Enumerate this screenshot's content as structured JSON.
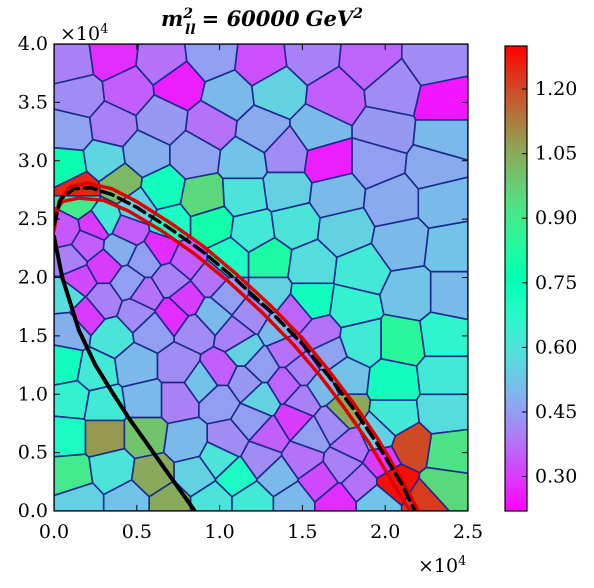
{
  "chart_data": {
    "type": "heatmap",
    "title": "m_ll^2 = 60000 GeV^2",
    "title_parts": {
      "m": "m",
      "sup": "2",
      "sub": "ll",
      "eq": "= 60000",
      "unit": "GeV",
      "unit_sup": "2"
    },
    "x_range": [
      0,
      25000
    ],
    "y_range": [
      0,
      40000
    ],
    "x_ticks": [
      0,
      5000,
      10000,
      15000,
      20000,
      25000
    ],
    "x_tick_labels": [
      "0.0",
      "0.5",
      "1.0",
      "1.5",
      "2.0",
      "2.5"
    ],
    "y_ticks": [
      0,
      5000,
      10000,
      15000,
      20000,
      25000,
      30000,
      35000,
      40000
    ],
    "y_tick_labels": [
      "0.0",
      "0.5",
      "1.0",
      "1.5",
      "2.0",
      "2.5",
      "3.0",
      "3.5",
      "4.0"
    ],
    "x_multiplier": {
      "base": "×10",
      "exp": "4"
    },
    "y_multiplier": {
      "base": "×10",
      "exp": "4"
    },
    "colorbar": {
      "range": [
        0.22,
        1.3
      ],
      "ticks": [
        0.3,
        0.45,
        0.6,
        0.75,
        0.9,
        1.05,
        1.2
      ],
      "tick_labels": [
        "0.30",
        "0.45",
        "0.60",
        "0.75",
        "0.90",
        "1.05",
        "1.20"
      ],
      "colormap": "rainbow"
    },
    "cells": [
      {
        "x": 1000,
        "y": 38500,
        "v": 0.4
      },
      {
        "x": 3500,
        "y": 39000,
        "v": 0.28
      },
      {
        "x": 6500,
        "y": 38500,
        "v": 0.38
      },
      {
        "x": 9500,
        "y": 39000,
        "v": 0.45
      },
      {
        "x": 12500,
        "y": 38500,
        "v": 0.33
      },
      {
        "x": 15500,
        "y": 39000,
        "v": 0.4
      },
      {
        "x": 19000,
        "y": 38500,
        "v": 0.36
      },
      {
        "x": 23000,
        "y": 38500,
        "v": 0.42
      },
      {
        "x": 1500,
        "y": 35500,
        "v": 0.42
      },
      {
        "x": 4500,
        "y": 36000,
        "v": 0.35
      },
      {
        "x": 7500,
        "y": 36500,
        "v": 0.26
      },
      {
        "x": 10500,
        "y": 35500,
        "v": 0.5
      },
      {
        "x": 13500,
        "y": 36000,
        "v": 0.55
      },
      {
        "x": 17000,
        "y": 35500,
        "v": 0.35
      },
      {
        "x": 20500,
        "y": 36000,
        "v": 0.42
      },
      {
        "x": 23500,
        "y": 35000,
        "v": 0.25
      },
      {
        "x": 1000,
        "y": 32500,
        "v": 0.46
      },
      {
        "x": 3500,
        "y": 33000,
        "v": 0.4
      },
      {
        "x": 6500,
        "y": 33500,
        "v": 0.44
      },
      {
        "x": 9500,
        "y": 33000,
        "v": 0.38
      },
      {
        "x": 12500,
        "y": 32500,
        "v": 0.47
      },
      {
        "x": 16000,
        "y": 32500,
        "v": 0.5
      },
      {
        "x": 20000,
        "y": 32500,
        "v": 0.44
      },
      {
        "x": 23500,
        "y": 32000,
        "v": 0.5
      },
      {
        "x": 800,
        "y": 29500,
        "v": 0.78
      },
      {
        "x": 3000,
        "y": 30000,
        "v": 0.56
      },
      {
        "x": 5500,
        "y": 30500,
        "v": 0.48
      },
      {
        "x": 8500,
        "y": 30500,
        "v": 0.46
      },
      {
        "x": 11500,
        "y": 30000,
        "v": 0.52
      },
      {
        "x": 14000,
        "y": 30500,
        "v": 0.42
      },
      {
        "x": 16500,
        "y": 30000,
        "v": 0.26
      },
      {
        "x": 19500,
        "y": 30000,
        "v": 0.45
      },
      {
        "x": 23000,
        "y": 29500,
        "v": 0.47
      },
      {
        "x": 1500,
        "y": 27500,
        "v": 1.25
      },
      {
        "x": 4000,
        "y": 28000,
        "v": 1.02
      },
      {
        "x": 6500,
        "y": 27500,
        "v": 0.72
      },
      {
        "x": 9000,
        "y": 26800,
        "v": 0.95
      },
      {
        "x": 11500,
        "y": 27000,
        "v": 0.6
      },
      {
        "x": 14000,
        "y": 27500,
        "v": 0.55
      },
      {
        "x": 17000,
        "y": 27000,
        "v": 0.5
      },
      {
        "x": 20500,
        "y": 26500,
        "v": 0.47
      },
      {
        "x": 23500,
        "y": 26500,
        "v": 0.5
      },
      {
        "x": 600,
        "y": 24000,
        "v": 0.34
      },
      {
        "x": 2500,
        "y": 24500,
        "v": 0.3
      },
      {
        "x": 4500,
        "y": 24000,
        "v": 0.35
      },
      {
        "x": 7000,
        "y": 24500,
        "v": 0.7
      },
      {
        "x": 9500,
        "y": 24500,
        "v": 0.8
      },
      {
        "x": 12000,
        "y": 24000,
        "v": 0.62
      },
      {
        "x": 14500,
        "y": 24500,
        "v": 0.6
      },
      {
        "x": 17500,
        "y": 24000,
        "v": 0.55
      },
      {
        "x": 21000,
        "y": 23000,
        "v": 0.5
      },
      {
        "x": 24000,
        "y": 22500,
        "v": 0.52
      },
      {
        "x": 1000,
        "y": 21500,
        "v": 0.4
      },
      {
        "x": 3000,
        "y": 21000,
        "v": 0.3
      },
      {
        "x": 5500,
        "y": 21500,
        "v": 0.45
      },
      {
        "x": 8000,
        "y": 21500,
        "v": 0.35
      },
      {
        "x": 10500,
        "y": 21500,
        "v": 0.7
      },
      {
        "x": 13000,
        "y": 21500,
        "v": 0.82
      },
      {
        "x": 15500,
        "y": 21000,
        "v": 0.58
      },
      {
        "x": 18500,
        "y": 20500,
        "v": 0.62
      },
      {
        "x": 800,
        "y": 18500,
        "v": 0.58
      },
      {
        "x": 3000,
        "y": 18000,
        "v": 0.4
      },
      {
        "x": 5500,
        "y": 18500,
        "v": 0.38
      },
      {
        "x": 8000,
        "y": 18000,
        "v": 0.3
      },
      {
        "x": 10500,
        "y": 18500,
        "v": 0.45
      },
      {
        "x": 13000,
        "y": 18500,
        "v": 0.55
      },
      {
        "x": 15500,
        "y": 18000,
        "v": 0.72
      },
      {
        "x": 18000,
        "y": 17500,
        "v": 0.65
      },
      {
        "x": 21500,
        "y": 18500,
        "v": 0.52
      },
      {
        "x": 24000,
        "y": 18500,
        "v": 0.5
      },
      {
        "x": 1000,
        "y": 15500,
        "v": 0.48
      },
      {
        "x": 3500,
        "y": 15000,
        "v": 0.6
      },
      {
        "x": 6000,
        "y": 15500,
        "v": 0.45
      },
      {
        "x": 8500,
        "y": 15500,
        "v": 0.42
      },
      {
        "x": 11000,
        "y": 15000,
        "v": 0.4
      },
      {
        "x": 13500,
        "y": 15500,
        "v": 0.5
      },
      {
        "x": 16000,
        "y": 15000,
        "v": 0.38
      },
      {
        "x": 18500,
        "y": 14500,
        "v": 0.62
      },
      {
        "x": 21000,
        "y": 14500,
        "v": 0.85
      },
      {
        "x": 23500,
        "y": 15000,
        "v": 0.66
      },
      {
        "x": 600,
        "y": 12500,
        "v": 0.72
      },
      {
        "x": 2500,
        "y": 12000,
        "v": 0.62
      },
      {
        "x": 5000,
        "y": 12500,
        "v": 0.5
      },
      {
        "x": 7500,
        "y": 12500,
        "v": 0.42
      },
      {
        "x": 10000,
        "y": 12000,
        "v": 0.35
      },
      {
        "x": 12500,
        "y": 12500,
        "v": 0.45
      },
      {
        "x": 15000,
        "y": 12000,
        "v": 0.4
      },
      {
        "x": 17500,
        "y": 11500,
        "v": 0.52
      },
      {
        "x": 20500,
        "y": 11000,
        "v": 0.72
      },
      {
        "x": 23500,
        "y": 11500,
        "v": 0.62
      },
      {
        "x": 1000,
        "y": 9500,
        "v": 0.65
      },
      {
        "x": 3000,
        "y": 9000,
        "v": 0.62
      },
      {
        "x": 5500,
        "y": 9500,
        "v": 0.5
      },
      {
        "x": 7500,
        "y": 9500,
        "v": 0.4
      },
      {
        "x": 10000,
        "y": 9500,
        "v": 0.45
      },
      {
        "x": 12500,
        "y": 9500,
        "v": 0.55
      },
      {
        "x": 15000,
        "y": 9500,
        "v": 0.4
      },
      {
        "x": 17500,
        "y": 8500,
        "v": 1.05
      },
      {
        "x": 20500,
        "y": 8000,
        "v": 0.62
      },
      {
        "x": 23500,
        "y": 8500,
        "v": 0.58
      },
      {
        "x": 800,
        "y": 6500,
        "v": 0.7
      },
      {
        "x": 3000,
        "y": 6500,
        "v": 1.08
      },
      {
        "x": 5500,
        "y": 6500,
        "v": 1.0
      },
      {
        "x": 8000,
        "y": 6000,
        "v": 0.5
      },
      {
        "x": 10500,
        "y": 6000,
        "v": 0.42
      },
      {
        "x": 13000,
        "y": 6500,
        "v": 0.35
      },
      {
        "x": 15500,
        "y": 6500,
        "v": 0.45
      },
      {
        "x": 18000,
        "y": 5500,
        "v": 0.38
      },
      {
        "x": 21500,
        "y": 5500,
        "v": 1.2
      },
      {
        "x": 23800,
        "y": 5000,
        "v": 0.92
      },
      {
        "x": 1000,
        "y": 3000,
        "v": 0.9
      },
      {
        "x": 3500,
        "y": 3500,
        "v": 0.6
      },
      {
        "x": 6000,
        "y": 3000,
        "v": 1.05
      },
      {
        "x": 8500,
        "y": 3000,
        "v": 0.55
      },
      {
        "x": 11000,
        "y": 3000,
        "v": 0.7
      },
      {
        "x": 13500,
        "y": 3000,
        "v": 0.5
      },
      {
        "x": 16000,
        "y": 2500,
        "v": 0.32
      },
      {
        "x": 18500,
        "y": 2500,
        "v": 0.38
      },
      {
        "x": 20500,
        "y": 2500,
        "v": 1.28
      },
      {
        "x": 23500,
        "y": 2000,
        "v": 0.95
      },
      {
        "x": 1500,
        "y": 800,
        "v": 0.55
      },
      {
        "x": 4500,
        "y": 800,
        "v": 0.52
      },
      {
        "x": 7000,
        "y": 800,
        "v": 1.05
      },
      {
        "x": 9500,
        "y": 800,
        "v": 0.6
      },
      {
        "x": 12000,
        "y": 800,
        "v": 0.62
      },
      {
        "x": 14500,
        "y": 800,
        "v": 0.5
      },
      {
        "x": 17000,
        "y": 800,
        "v": 0.28
      },
      {
        "x": 19500,
        "y": 800,
        "v": 0.52
      },
      {
        "x": 22500,
        "y": 700,
        "v": 1.22
      },
      {
        "x": 1500,
        "y": 26500,
        "v": 0.9
      },
      {
        "x": 3000,
        "y": 25000,
        "v": 0.62
      },
      {
        "x": 5000,
        "y": 26000,
        "v": 0.55
      },
      {
        "x": 2000,
        "y": 22800,
        "v": 0.35
      },
      {
        "x": 4000,
        "y": 22500,
        "v": 0.48
      },
      {
        "x": 6500,
        "y": 22500,
        "v": 0.28
      },
      {
        "x": 1500,
        "y": 19800,
        "v": 0.32
      },
      {
        "x": 4500,
        "y": 19500,
        "v": 0.45
      },
      {
        "x": 7000,
        "y": 19800,
        "v": 0.4
      },
      {
        "x": 9500,
        "y": 19800,
        "v": 0.38
      },
      {
        "x": 2000,
        "y": 16800,
        "v": 0.3
      },
      {
        "x": 5000,
        "y": 17000,
        "v": 0.42
      },
      {
        "x": 7200,
        "y": 16800,
        "v": 0.28
      },
      {
        "x": 9500,
        "y": 16800,
        "v": 0.5
      },
      {
        "x": 12000,
        "y": 16800,
        "v": 0.42
      },
      {
        "x": 14500,
        "y": 16800,
        "v": 0.36
      },
      {
        "x": 11500,
        "y": 13800,
        "v": 0.55
      },
      {
        "x": 14000,
        "y": 13800,
        "v": 0.38
      },
      {
        "x": 16500,
        "y": 13500,
        "v": 0.46
      },
      {
        "x": 9000,
        "y": 11000,
        "v": 0.52
      },
      {
        "x": 11500,
        "y": 11000,
        "v": 0.44
      },
      {
        "x": 14000,
        "y": 10800,
        "v": 0.36
      },
      {
        "x": 16200,
        "y": 10600,
        "v": 0.5
      },
      {
        "x": 12000,
        "y": 7800,
        "v": 0.45
      },
      {
        "x": 14500,
        "y": 7800,
        "v": 0.3
      },
      {
        "x": 16800,
        "y": 7500,
        "v": 0.42
      },
      {
        "x": 19500,
        "y": 6500,
        "v": 0.55
      },
      {
        "x": 10000,
        "y": 4500,
        "v": 0.6
      },
      {
        "x": 12500,
        "y": 4500,
        "v": 0.42
      },
      {
        "x": 15000,
        "y": 4500,
        "v": 0.38
      },
      {
        "x": 17500,
        "y": 4000,
        "v": 0.4
      },
      {
        "x": 19800,
        "y": 4200,
        "v": 0.3
      }
    ],
    "contours": [
      {
        "style": "red-outer",
        "color": "#e00000",
        "x": [
          0,
          300,
          1000,
          2000,
          3500,
          5000,
          7000,
          9000,
          11000,
          13000,
          15000,
          16500,
          18000,
          19500,
          21000,
          22000
        ],
        "y": [
          24000,
          26500,
          27800,
          28100,
          27600,
          26500,
          24700,
          22700,
          20300,
          17700,
          14800,
          12200,
          9400,
          6300,
          2700,
          0
        ]
      },
      {
        "style": "red-inner",
        "color": "#e00000",
        "x": [
          0,
          500,
          1500,
          3000,
          4500,
          6500,
          8500,
          10500,
          12500,
          14500,
          16000,
          17500,
          19000,
          20500,
          21500
        ],
        "y": [
          25500,
          26500,
          26800,
          26600,
          25700,
          24000,
          22000,
          19700,
          17100,
          14200,
          11700,
          8900,
          5900,
          2300,
          0
        ]
      },
      {
        "style": "red-lower",
        "color": "#e00000",
        "x": [
          0,
          500,
          1500,
          2500,
          3500,
          4500,
          5500,
          6500,
          7500,
          8500
        ],
        "y": [
          23500,
          20000,
          15500,
          12500,
          10200,
          8000,
          6000,
          4000,
          2000,
          0
        ]
      },
      {
        "style": "black-dashed-upper",
        "color": "#000000",
        "x": [
          0,
          400,
          1200,
          2200,
          3500,
          5000,
          7000,
          9000,
          11000,
          13000,
          15000,
          16500,
          18000,
          19500,
          21000,
          21800
        ],
        "y": [
          24500,
          26700,
          27600,
          27700,
          27100,
          26000,
          24200,
          22200,
          19800,
          17200,
          14300,
          11700,
          8900,
          5800,
          2300,
          0
        ]
      },
      {
        "style": "black-solid-lower",
        "color": "#000000",
        "x": [
          0,
          500,
          1500,
          2500,
          3500,
          4500,
          5500,
          6500,
          7500,
          8500
        ],
        "y": [
          23500,
          20000,
          15500,
          12500,
          10200,
          8000,
          6000,
          4000,
          2000,
          0
        ]
      }
    ]
  }
}
